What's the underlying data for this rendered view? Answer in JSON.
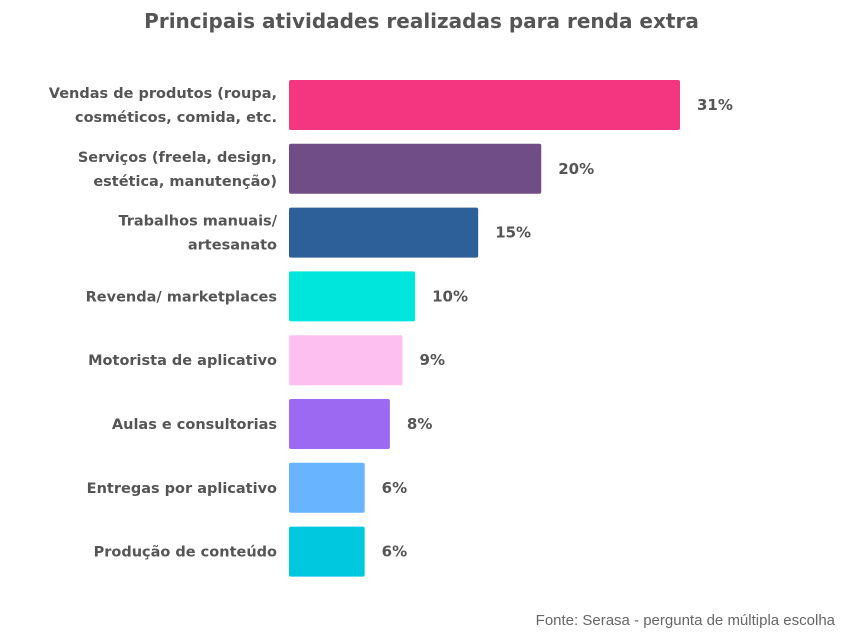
{
  "chart_data": {
    "type": "bar",
    "orientation": "horizontal",
    "title": "Principais atividades realizadas para renda extra",
    "categories": [
      [
        "Vendas de produtos (roupa,",
        "cosméticos, comida, etc."
      ],
      [
        "Serviços (freela, design,",
        "estética, manutenção)"
      ],
      [
        "Trabalhos manuais/",
        "artesanato"
      ],
      [
        "Revenda/ marketplaces"
      ],
      [
        "Motorista de aplicativo"
      ],
      [
        "Aulas e consultorias"
      ],
      [
        "Entregas por aplicativo"
      ],
      [
        "Produção de conteúdo"
      ]
    ],
    "values": [
      31,
      20,
      15,
      10,
      9,
      8,
      6,
      6
    ],
    "value_labels": [
      "31%",
      "20%",
      "15%",
      "10%",
      "9%",
      "8%",
      "6%",
      "6%"
    ],
    "colors": [
      "#F43580",
      "#714D87",
      "#2D5F98",
      "#00E6DC",
      "#FDBEF0",
      "#9C69F2",
      "#69B4FF",
      "#00C8DE"
    ],
    "unit": "%",
    "xlim": [
      0,
      31
    ],
    "grid": false,
    "legend": "none"
  },
  "source": "Fonte: Serasa - pergunta de múltipla escolha"
}
